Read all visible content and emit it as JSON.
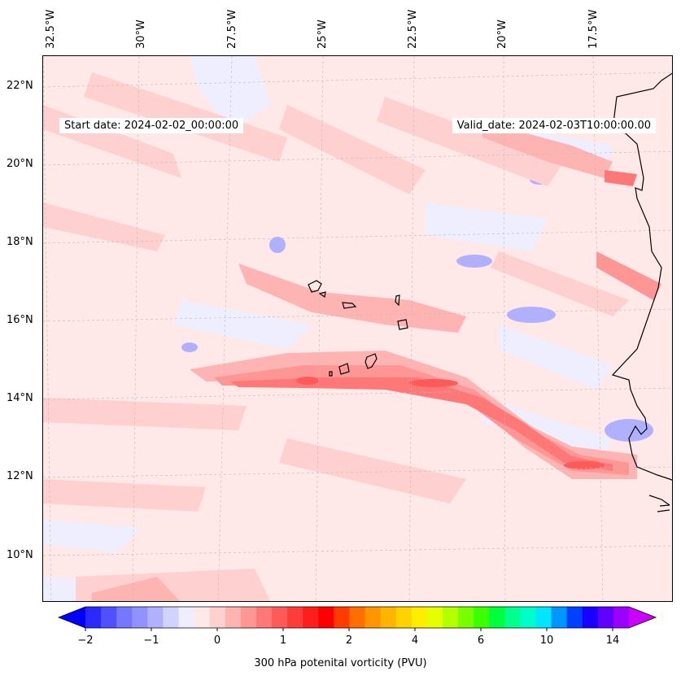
{
  "map": {
    "start_date": "Start date: 2024-02-02_00:00:00",
    "valid_date": "Valid_date: 2024-02-03T10:00:00.00",
    "lon_labels": [
      "32.5°W",
      "30°W",
      "27.5°W",
      "25°W",
      "22.5°W",
      "20°W",
      "17.5°W"
    ],
    "lat_labels": [
      "22°N",
      "20°N",
      "18°N",
      "16°N",
      "14°N",
      "12°N",
      "10°N"
    ]
  },
  "colorbar": {
    "label": "300 hPa potenital vorticity (PVU)",
    "ticks": [
      "−2",
      "−1",
      "0",
      "1",
      "2",
      "4",
      "6",
      "10",
      "14"
    ],
    "colors": [
      "#0000ff",
      "#2a2aff",
      "#5050ff",
      "#7676ff",
      "#9292ff",
      "#b0b0ff",
      "#d2d2ff",
      "#eeeeff",
      "#ffe8e8",
      "#ffd0d0",
      "#ffb4b4",
      "#ff9696",
      "#ff7878",
      "#ff5a5a",
      "#ff3c3c",
      "#ff1e1e",
      "#ff0000",
      "#ff3c00",
      "#ff6e00",
      "#ff9600",
      "#ffb400",
      "#ffd200",
      "#ffee00",
      "#e6ff00",
      "#b4ff00",
      "#78ff00",
      "#3cff00",
      "#00ff3c",
      "#00ff8c",
      "#00ffc8",
      "#00e6ff",
      "#0096ff",
      "#0040ff",
      "#1a00ff",
      "#6000ff",
      "#9a00ff",
      "#cc00ff"
    ]
  }
}
